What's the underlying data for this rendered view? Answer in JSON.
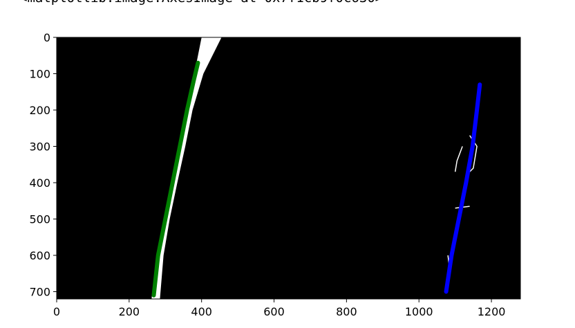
{
  "output_repr": "<matplotlib.image.AxesImage at 0x7f1cb9f0c630>",
  "chart_data": {
    "type": "image",
    "image_extent": {
      "x": [
        0,
        1280
      ],
      "y": [
        720,
        0
      ]
    },
    "xticks": [
      0,
      200,
      400,
      600,
      800,
      1000,
      1200
    ],
    "yticks": [
      0,
      100,
      200,
      300,
      400,
      500,
      600,
      700
    ],
    "background_color": "#000000",
    "lane_pixels_color": "#ffffff",
    "left_fit": {
      "color": "#008000",
      "points": [
        [
          268,
          710
        ],
        [
          280,
          600
        ],
        [
          300,
          500
        ],
        [
          320,
          400
        ],
        [
          340,
          300
        ],
        [
          360,
          200
        ],
        [
          378,
          120
        ],
        [
          390,
          70
        ]
      ]
    },
    "right_fit": {
      "color": "#0000ff",
      "points": [
        [
          1075,
          700
        ],
        [
          1090,
          600
        ],
        [
          1110,
          500
        ],
        [
          1130,
          400
        ],
        [
          1148,
          300
        ],
        [
          1160,
          200
        ],
        [
          1168,
          130
        ]
      ]
    },
    "left_lane_band": {
      "inner": [
        [
          262,
          720
        ],
        [
          275,
          600
        ],
        [
          295,
          500
        ],
        [
          318,
          400
        ],
        [
          338,
          300
        ],
        [
          358,
          200
        ],
        [
          380,
          100
        ],
        [
          400,
          0
        ]
      ],
      "outer": [
        [
          285,
          720
        ],
        [
          295,
          600
        ],
        [
          312,
          500
        ],
        [
          333,
          400
        ],
        [
          355,
          300
        ],
        [
          375,
          200
        ],
        [
          405,
          100
        ],
        [
          455,
          0
        ]
      ]
    },
    "right_noise": [
      [
        [
          1075,
          700
        ],
        [
          1085,
          640
        ],
        [
          1080,
          600
        ]
      ],
      [
        [
          1140,
          270
        ],
        [
          1160,
          300
        ],
        [
          1150,
          360
        ],
        [
          1130,
          380
        ]
      ],
      [
        [
          1120,
          300
        ],
        [
          1105,
          340
        ],
        [
          1100,
          370
        ]
      ],
      [
        [
          1100,
          470
        ],
        [
          1140,
          465
        ]
      ]
    ]
  }
}
